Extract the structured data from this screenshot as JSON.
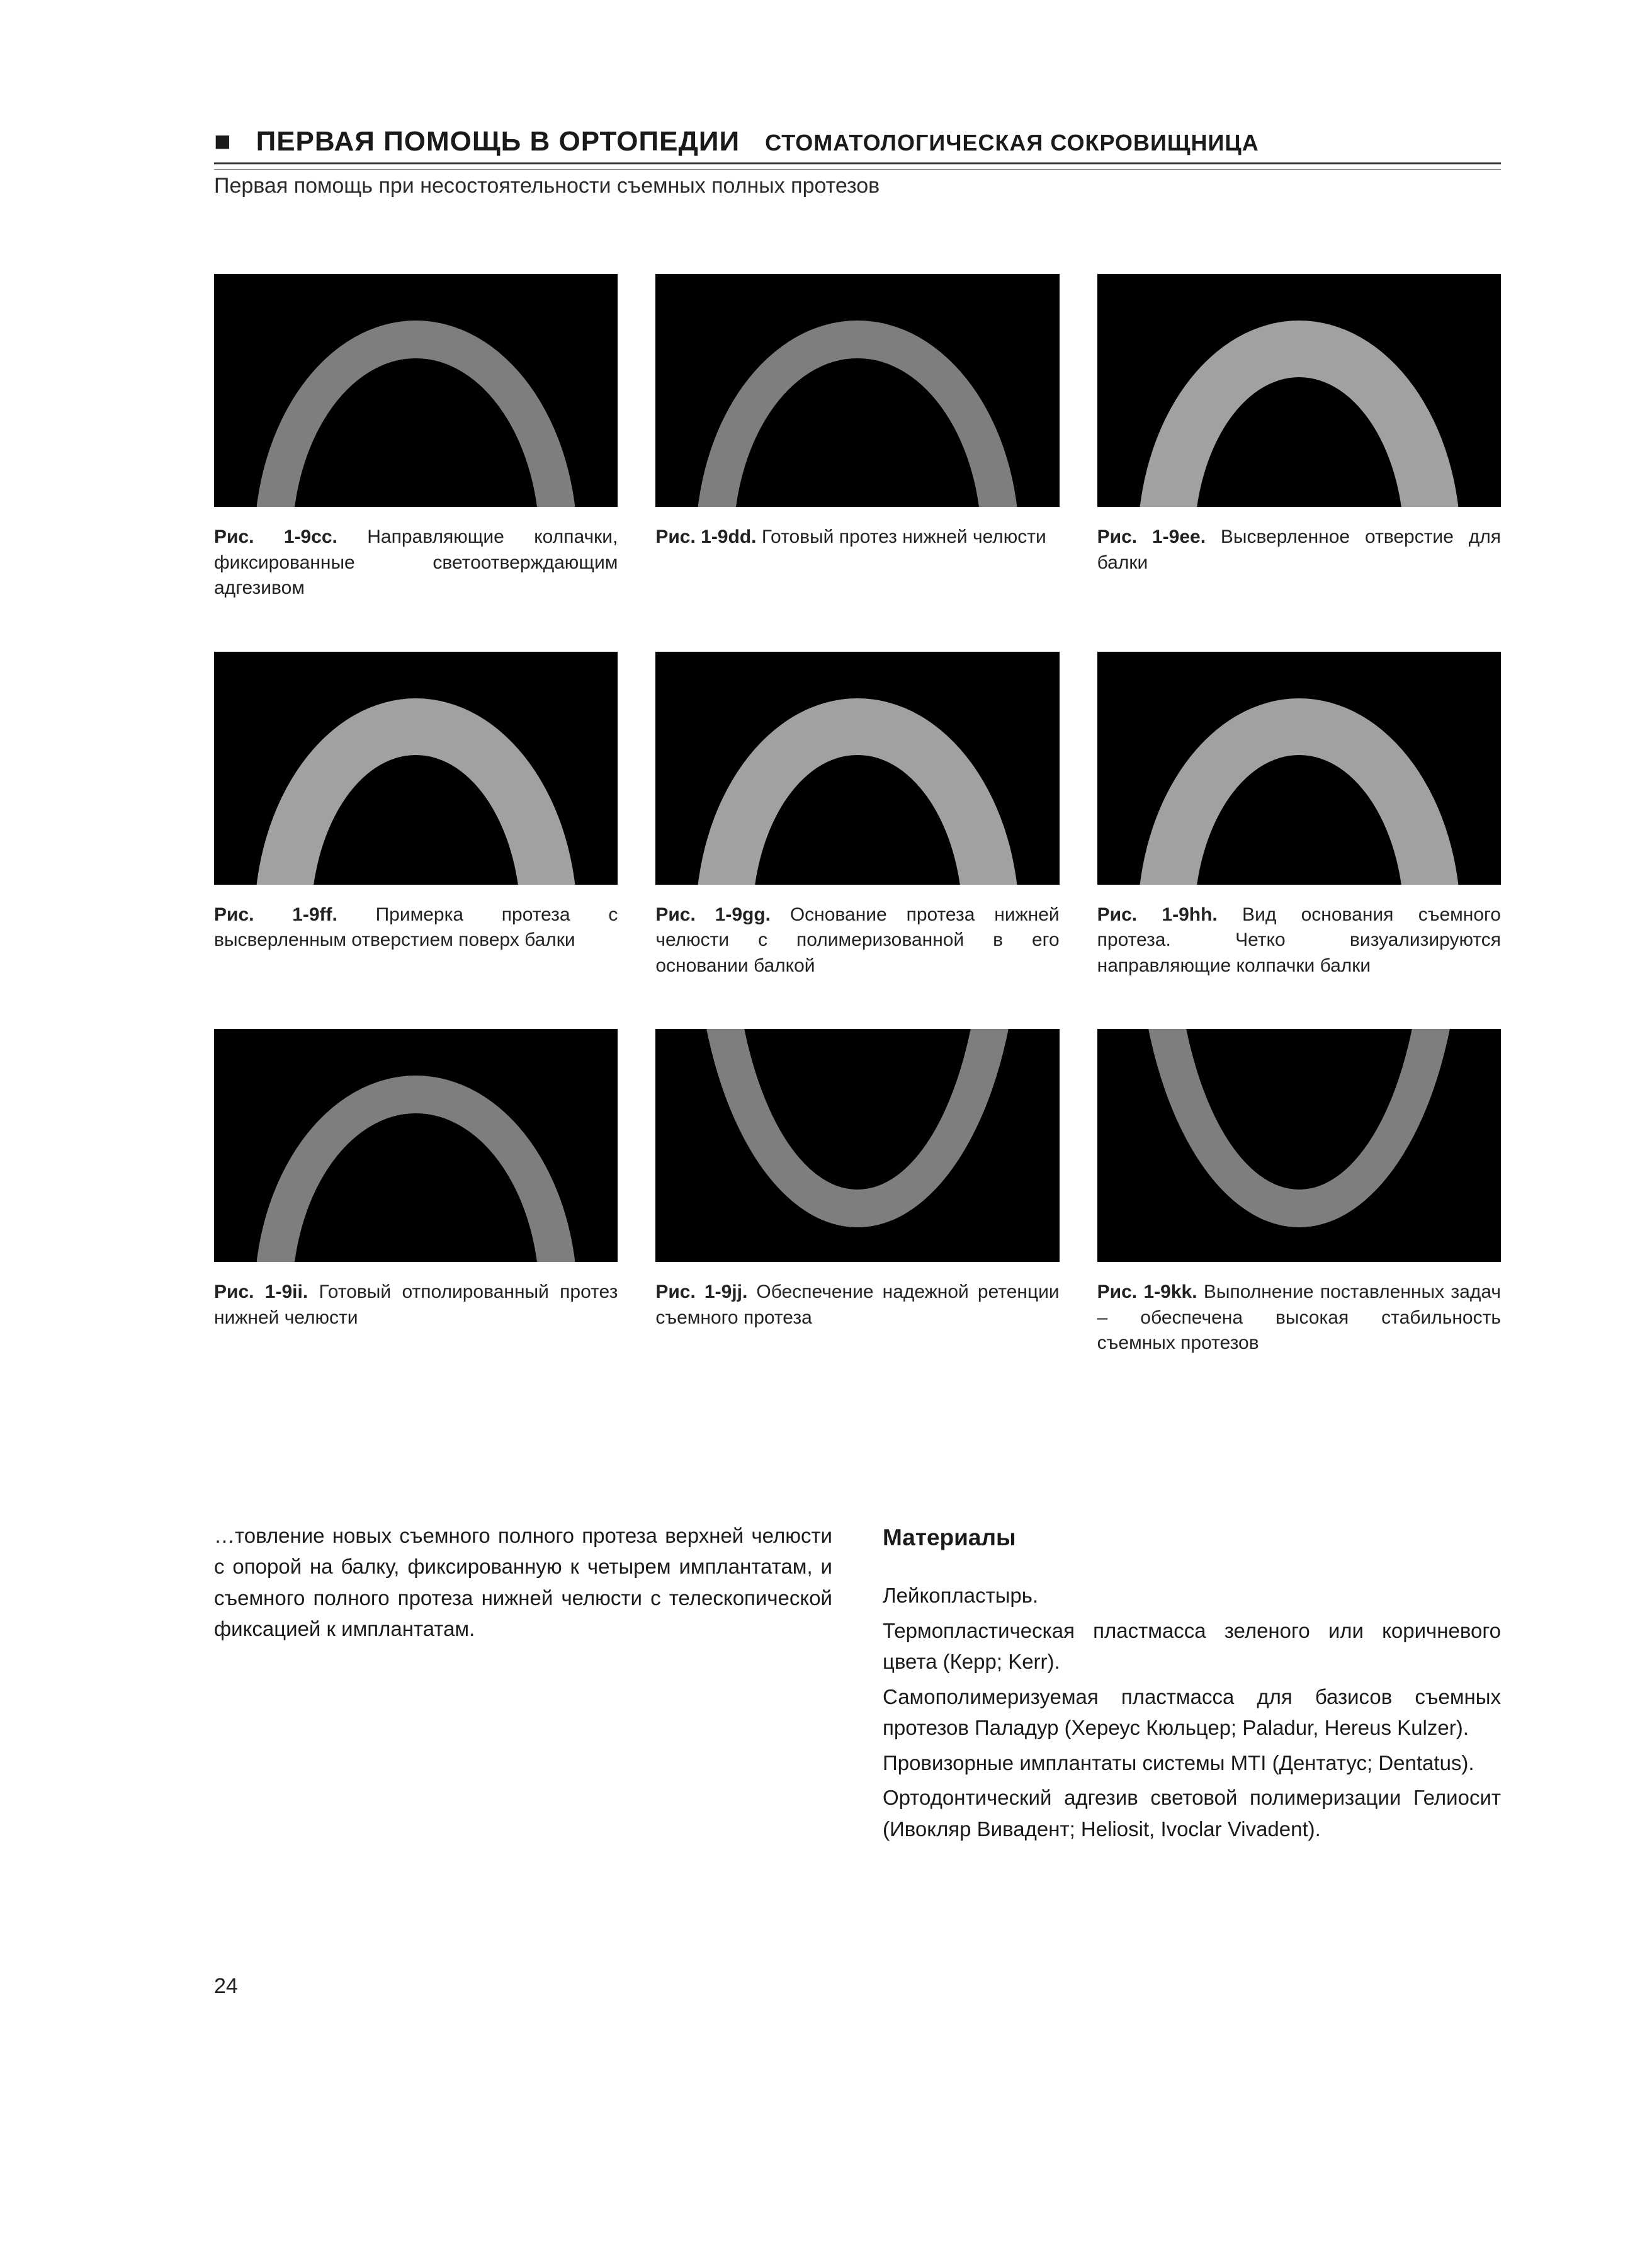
{
  "header": {
    "marker": "■",
    "main": "ПЕРВАЯ ПОМОЩЬ В ОРТОПЕДИИ",
    "sub": "СТОМАТОЛОГИЧЕСКАЯ СОКРОВИЩНИЦА",
    "subtitle": "Первая помощь при несостоятельности съемных полных протезов"
  },
  "figures": [
    {
      "label": "Рис. 1-9cc.",
      "caption": "Направляющие колпачки, фиксированные светоотверждающим адгезивом",
      "variant": ""
    },
    {
      "label": "Рис. 1-9dd.",
      "caption": "Готовый протез нижней челюсти",
      "variant": ""
    },
    {
      "label": "Рис. 1-9ee.",
      "caption": "Высверленное отверстие для балки",
      "variant": "variant-c"
    },
    {
      "label": "Рис. 1-9ff.",
      "caption": "Примерка протеза с высверленным отверстием поверх балки",
      "variant": "variant-c"
    },
    {
      "label": "Рис. 1-9gg.",
      "caption": "Основание протеза нижней челюсти с полимеризованной в его основании балкой",
      "variant": "variant-c"
    },
    {
      "label": "Рис. 1-9hh.",
      "caption": "Вид основания съемного протеза. Четко визуализируются направляющие колпачки балки",
      "variant": "variant-c"
    },
    {
      "label": "Рис. 1-9ii.",
      "caption": "Готовый отполированный протез нижней челюсти",
      "variant": ""
    },
    {
      "label": "Рис. 1-9jj.",
      "caption": "Обеспечение надежной ретенции съемного протеза",
      "variant": "variant-b"
    },
    {
      "label": "Рис. 1-9kk.",
      "caption": "Выполнение поставленных задач – обеспечена высокая стабильность съемных протезов",
      "variant": "variant-b"
    }
  ],
  "body": {
    "left": "…товление новых съемного полного протеза верхней челюсти с опорой на балку, фиксированную к четырем имплантатам, и съемного полного протеза нижней челюсти с телескопической фиксацией к имплантатам.",
    "right": {
      "heading": "Материалы",
      "items": [
        "Лейкопластырь.",
        "Термопластическая пластмасса зеленого или коричневого цвета (Керр; Kerr).",
        "Самополимеризуемая пластмасса для базисов съемных протезов Паладур (Хереус Кюльцер; Paladur, Hereus Kulzer).",
        "Провизорные имплантаты системы MTI (Дентатус; Dentatus).",
        "Ортодонтический адгезив световой полимеризации Гелиосит (Ивокляр Вивадент; Heliosit, Ivoclar Vivadent)."
      ]
    }
  },
  "page_number": "24"
}
